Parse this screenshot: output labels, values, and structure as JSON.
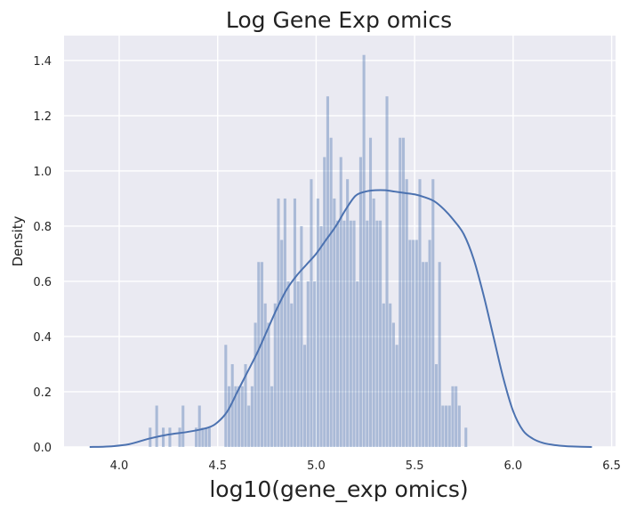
{
  "chart_data": {
    "type": "histogram",
    "title": "Log Gene Exp omics",
    "xlabel": "log10(gene_exp omics)",
    "ylabel": "Density",
    "xlim": [
      3.72,
      6.52
    ],
    "ylim": [
      0,
      1.49
    ],
    "xticks": [
      4.0,
      4.5,
      5.0,
      5.5,
      6.0,
      6.5
    ],
    "yticks": [
      0.0,
      0.2,
      0.4,
      0.6,
      0.8,
      1.0,
      1.2,
      1.4
    ],
    "grid": true,
    "colors": {
      "background": "#eaeaf2",
      "grid": "#ffffff",
      "bars": "#4c72b0",
      "kde": "#4c72b0"
    },
    "histogram": {
      "bin_start": 4.15,
      "bin_width": 0.0167,
      "densities": [
        0.07,
        0.0,
        0.15,
        0.0,
        0.07,
        0.0,
        0.07,
        0.0,
        0.0,
        0.07,
        0.15,
        0.0,
        0.0,
        0.0,
        0.07,
        0.15,
        0.07,
        0.07,
        0.07,
        0.0,
        0.0,
        0.0,
        0.0,
        0.37,
        0.22,
        0.3,
        0.22,
        0.22,
        0.22,
        0.3,
        0.15,
        0.22,
        0.45,
        0.67,
        0.67,
        0.52,
        0.45,
        0.22,
        0.52,
        0.9,
        0.75,
        0.9,
        0.6,
        0.52,
        0.9,
        0.6,
        0.8,
        0.37,
        0.6,
        0.97,
        0.6,
        0.9,
        0.8,
        1.05,
        1.27,
        1.12,
        0.9,
        0.82,
        1.05,
        0.82,
        0.97,
        0.82,
        0.82,
        0.6,
        1.05,
        1.42,
        0.82,
        1.12,
        0.9,
        0.82,
        0.82,
        0.52,
        1.27,
        0.52,
        0.45,
        0.37,
        1.12,
        1.12,
        0.97,
        0.75,
        0.75,
        0.75,
        0.97,
        0.67,
        0.67,
        0.75,
        0.97,
        0.3,
        0.67,
        0.15,
        0.15,
        0.15,
        0.22,
        0.22,
        0.15,
        0.0,
        0.07
      ]
    },
    "kde": {
      "x": [
        3.85,
        3.95,
        4.05,
        4.15,
        4.25,
        4.35,
        4.45,
        4.5,
        4.55,
        4.6,
        4.65,
        4.7,
        4.75,
        4.8,
        4.85,
        4.9,
        4.95,
        5.0,
        5.05,
        5.1,
        5.15,
        5.2,
        5.25,
        5.3,
        5.35,
        5.4,
        5.45,
        5.5,
        5.55,
        5.6,
        5.65,
        5.7,
        5.75,
        5.8,
        5.85,
        5.9,
        5.95,
        6.0,
        6.05,
        6.1,
        6.15,
        6.2,
        6.25,
        6.3,
        6.4
      ],
      "y": [
        0.0,
        0.002,
        0.01,
        0.03,
        0.045,
        0.055,
        0.07,
        0.09,
        0.13,
        0.2,
        0.27,
        0.34,
        0.42,
        0.5,
        0.57,
        0.62,
        0.66,
        0.7,
        0.75,
        0.8,
        0.86,
        0.91,
        0.925,
        0.93,
        0.93,
        0.925,
        0.92,
        0.915,
        0.905,
        0.89,
        0.86,
        0.82,
        0.77,
        0.68,
        0.55,
        0.4,
        0.25,
        0.13,
        0.06,
        0.03,
        0.015,
        0.008,
        0.004,
        0.002,
        0.0
      ]
    }
  }
}
